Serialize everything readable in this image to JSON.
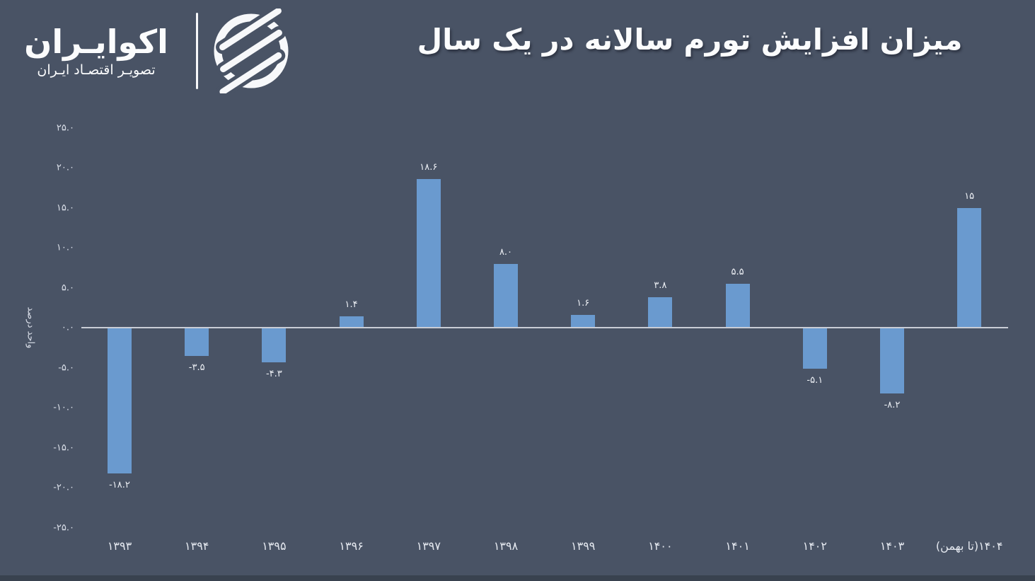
{
  "header": {
    "brand": {
      "name": "اکوایـران",
      "tagline": "تصویـر اقتصـاد ایـران",
      "icon": "ecoiran-circle-stripes-logo"
    },
    "title": "میزان افزایش تورم سالانه در یک سال"
  },
  "colors": {
    "background": "#495365",
    "bar": "#6A9ACF",
    "zero_axis_line": "#C9CDD6",
    "text": "#FBFCFD",
    "footer_strip": "#39424F"
  },
  "chart_data": {
    "type": "bar",
    "title": "میزان افزایش تورم سالانه در یک سال",
    "xlabel": "",
    "ylabel": "واحد درصد",
    "ylim": [
      -25,
      25
    ],
    "y_tick_step": 5,
    "grid": false,
    "legend": null,
    "bar_color": "#6A9ACF",
    "categories": [
      "۱۳۹۳",
      "۱۳۹۴",
      "۱۳۹۵",
      "۱۳۹۶",
      "۱۳۹۷",
      "۱۳۹۸",
      "۱۳۹۹",
      "۱۴۰۰",
      "۱۴۰۱",
      "۱۴۰۲",
      "۱۴۰۳",
      "۱۴۰۴(تا بهمن)"
    ],
    "categories_values": [
      1393,
      1394,
      1395,
      1396,
      1397,
      1398,
      1399,
      1400,
      1401,
      1402,
      1403,
      1404
    ],
    "values": [
      -18.2,
      -3.5,
      -4.3,
      1.4,
      18.6,
      8.0,
      1.6,
      3.8,
      5.5,
      -5.1,
      -8.2,
      15
    ],
    "value_labels": [
      "-۱۸.۲",
      "-۳.۵",
      "-۴.۳",
      "۱.۴",
      "۱۸.۶",
      "۸.۰",
      "۱.۶",
      "۳.۸",
      "۵.۵",
      "-۵.۱",
      "-۸.۲",
      "۱۵"
    ],
    "y_ticks": {
      "values": [
        25,
        20,
        15,
        10,
        5,
        0,
        -5,
        -10,
        -15,
        -20,
        -25
      ],
      "labels": [
        "۲۵.۰",
        "۲۰.۰",
        "۱۵.۰",
        "۱۰.۰",
        "۵.۰",
        "۰.۰",
        "-۵.۰",
        "-۱۰.۰",
        "-۱۵.۰",
        "-۲۰.۰",
        "-۲۵.۰"
      ]
    }
  }
}
